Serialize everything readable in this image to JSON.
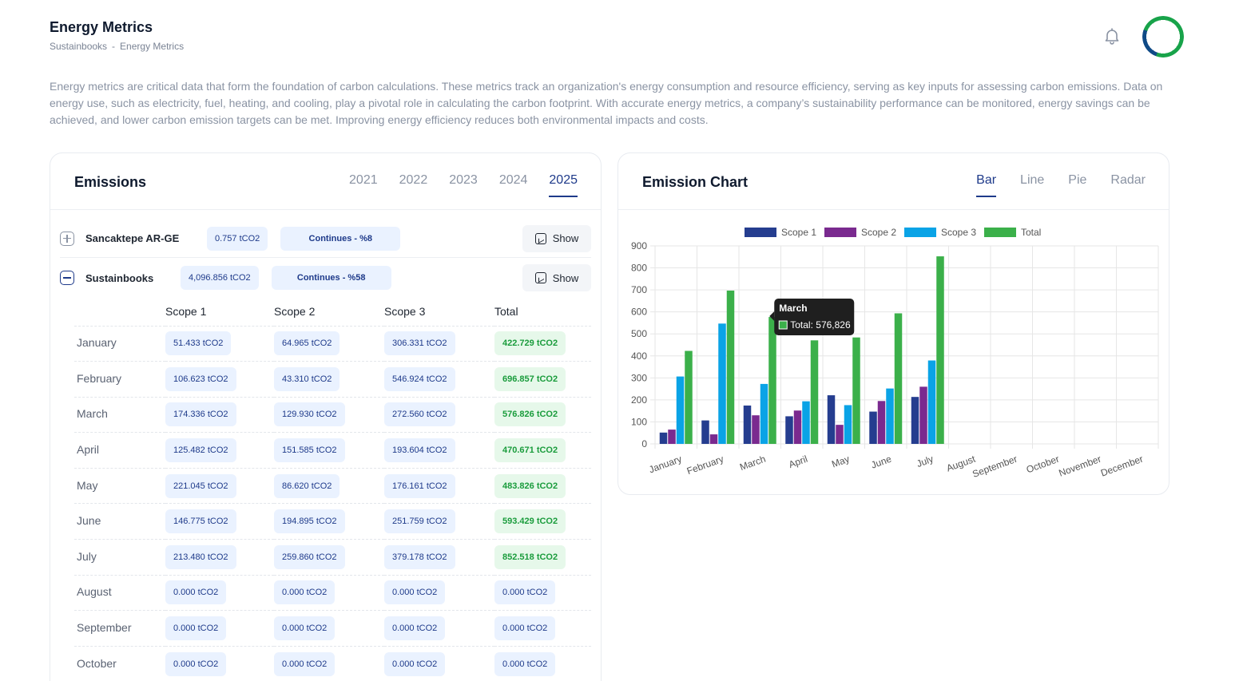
{
  "header": {
    "title": "Energy Metrics",
    "breadcrumb": [
      "Sustainbooks",
      "-",
      "Energy Metrics"
    ]
  },
  "intro": "Energy metrics are critical data that form the foundation of carbon calculations. These metrics track an organization's energy consumption and resource efficiency, serving as key inputs for assessing carbon emissions. Data on energy use, such as electricity, fuel, heating, and cooling, play a pivotal role in calculating the carbon footprint. With accurate energy metrics, a company’s sustainability performance can be monitored, energy savings can be achieved, and lower carbon emission targets can be met. Improving energy efficiency reduces both environmental impacts and costs.",
  "emissions": {
    "title": "Emissions",
    "years": [
      "2021",
      "2022",
      "2023",
      "2024",
      "2025"
    ],
    "active_year": "2025",
    "sites": [
      {
        "name": "Sancaktepe AR-GE",
        "value": "0.757 tCO2",
        "status": "Continues - %8",
        "action": "Show"
      },
      {
        "name": "Sustainbooks",
        "value": "4,096.856 tCO2",
        "status": "Continues - %58",
        "action": "Show"
      }
    ],
    "table": {
      "headers": [
        "",
        "Scope 1",
        "Scope 2",
        "Scope 3",
        "Total"
      ],
      "rows": [
        {
          "month": "January",
          "s1": "51.433 tCO2",
          "s2": "64.965 tCO2",
          "s3": "306.331 tCO2",
          "total": "422.729 tCO2"
        },
        {
          "month": "February",
          "s1": "106.623 tCO2",
          "s2": "43.310 tCO2",
          "s3": "546.924 tCO2",
          "total": "696.857 tCO2"
        },
        {
          "month": "March",
          "s1": "174.336 tCO2",
          "s2": "129.930 tCO2",
          "s3": "272.560 tCO2",
          "total": "576.826 tCO2"
        },
        {
          "month": "April",
          "s1": "125.482 tCO2",
          "s2": "151.585 tCO2",
          "s3": "193.604 tCO2",
          "total": "470.671 tCO2"
        },
        {
          "month": "May",
          "s1": "221.045 tCO2",
          "s2": "86.620 tCO2",
          "s3": "176.161 tCO2",
          "total": "483.826 tCO2"
        },
        {
          "month": "June",
          "s1": "146.775 tCO2",
          "s2": "194.895 tCO2",
          "s3": "251.759 tCO2",
          "total": "593.429 tCO2"
        },
        {
          "month": "July",
          "s1": "213.480 tCO2",
          "s2": "259.860 tCO2",
          "s3": "379.178 tCO2",
          "total": "852.518 tCO2"
        },
        {
          "month": "August",
          "s1": "0.000 tCO2",
          "s2": "0.000 tCO2",
          "s3": "0.000 tCO2",
          "total": "0.000 tCO2"
        },
        {
          "month": "September",
          "s1": "0.000 tCO2",
          "s2": "0.000 tCO2",
          "s3": "0.000 tCO2",
          "total": "0.000 tCO2"
        },
        {
          "month": "October",
          "s1": "0.000 tCO2",
          "s2": "0.000 tCO2",
          "s3": "0.000 tCO2",
          "total": "0.000 tCO2"
        }
      ]
    }
  },
  "emission_chart": {
    "title": "Emission Chart",
    "tabs": [
      "Bar",
      "Line",
      "Pie",
      "Radar"
    ],
    "active_tab": "Bar",
    "tooltip": {
      "title": "March",
      "label": "Total: 576,826"
    }
  },
  "colors": {
    "scope1": "#253d8f",
    "scope2": "#7a2a8f",
    "scope3": "#0aa3e6",
    "total": "#3bb04a",
    "accent": "#1e3a8a"
  },
  "chart_data": {
    "type": "bar",
    "categories": [
      "January",
      "February",
      "March",
      "April",
      "May",
      "June",
      "July",
      "August",
      "September",
      "October",
      "November",
      "December"
    ],
    "series": [
      {
        "name": "Scope 1",
        "values": [
          51.433,
          106.623,
          174.336,
          125.482,
          221.045,
          146.775,
          213.48,
          0,
          0,
          0,
          0,
          0
        ]
      },
      {
        "name": "Scope 2",
        "values": [
          64.965,
          43.31,
          129.93,
          151.585,
          86.62,
          194.895,
          259.86,
          0,
          0,
          0,
          0,
          0
        ]
      },
      {
        "name": "Scope 3",
        "values": [
          306.331,
          546.924,
          272.56,
          193.604,
          176.161,
          251.759,
          379.178,
          0,
          0,
          0,
          0,
          0
        ]
      },
      {
        "name": "Total",
        "values": [
          422.729,
          696.857,
          576.826,
          470.671,
          483.826,
          593.429,
          852.518,
          0,
          0,
          0,
          0,
          0
        ]
      }
    ],
    "ylim": [
      0,
      900
    ],
    "yticks": [
      0,
      100,
      200,
      300,
      400,
      500,
      600,
      700,
      800,
      900
    ],
    "legend": "top",
    "grid": true
  }
}
